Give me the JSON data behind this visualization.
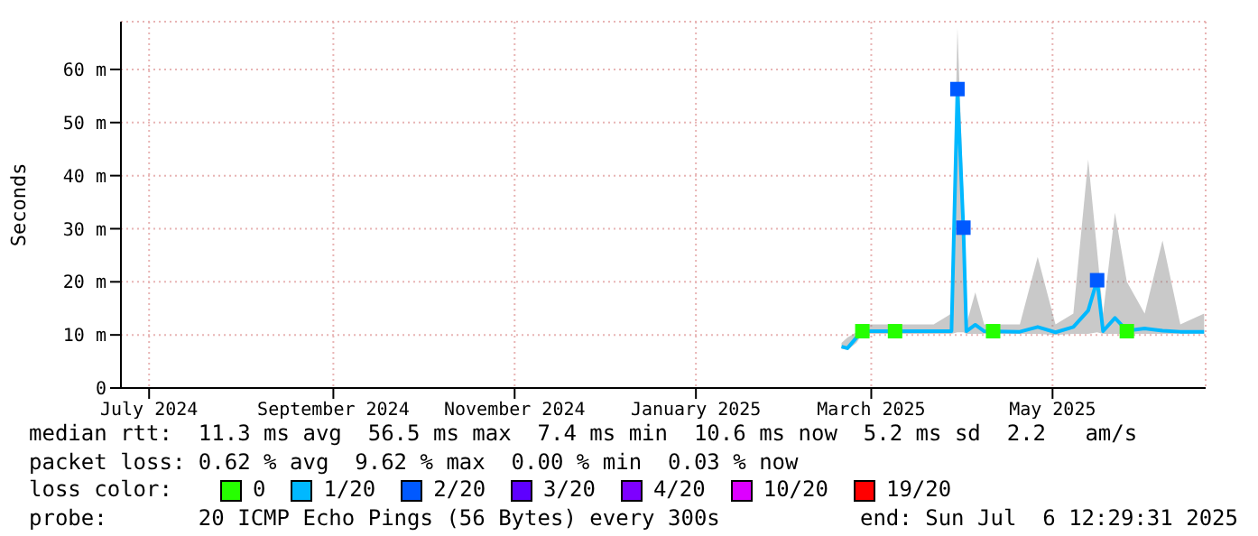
{
  "chart_data": {
    "type": "line",
    "ylabel": "Seconds",
    "xlim": [
      "2024-07-06T12:29",
      "2025-07-06T12:29"
    ],
    "xticks": [
      {
        "value": "2024-07-16",
        "label": "July 2024"
      },
      {
        "value": "2024-09-16",
        "label": "September 2024"
      },
      {
        "value": "2024-11-16",
        "label": "November 2024"
      },
      {
        "value": "2025-01-16",
        "label": "January 2025"
      },
      {
        "value": "2025-03-16",
        "label": "March 2025"
      },
      {
        "value": "2025-05-16",
        "label": "May 2025"
      }
    ],
    "ylim": [
      0,
      69
    ],
    "yticks": [
      0,
      {
        "value": 10,
        "label": "10 m"
      },
      {
        "value": 20,
        "label": "20 m"
      },
      {
        "value": 30,
        "label": "30 m"
      },
      {
        "value": 40,
        "label": "40 m"
      },
      {
        "value": 50,
        "label": "50 m"
      },
      {
        "value": 60,
        "label": "60 m"
      }
    ],
    "grid": true,
    "legend": "bottom",
    "legend_title": "loss color:",
    "series": [
      {
        "name": "0",
        "color": "#26ff00",
        "type": "scatter",
        "x": [
          "2025-03-13",
          "2025-03-24",
          "2025-04-26",
          "2025-06-10"
        ],
        "values": [
          10.7,
          10.7,
          10.7,
          10.7
        ]
      },
      {
        "name": "1/20",
        "color": "#00b8ff",
        "x": [
          "2025-03-06",
          "2025-03-08",
          "2025-03-11",
          "2025-03-13",
          "2025-03-25",
          "2025-04-06",
          "2025-04-12",
          "2025-04-14",
          "2025-04-16",
          "2025-04-17",
          "2025-04-20",
          "2025-04-23",
          "2025-05-05",
          "2025-05-11",
          "2025-05-17",
          "2025-05-23",
          "2025-05-28",
          "2025-05-31",
          "2025-06-02",
          "2025-06-06",
          "2025-06-10",
          "2025-06-16",
          "2025-06-22",
          "2025-06-28",
          "2025-07-06"
        ],
        "values": [
          7.8,
          7.5,
          9.5,
          10.7,
          10.7,
          10.7,
          10.7,
          56.3,
          30.2,
          10.7,
          11.9,
          10.7,
          10.6,
          11.5,
          10.5,
          11.5,
          14.6,
          20.3,
          10.7,
          13.2,
          10.8,
          11.2,
          10.8,
          10.6,
          10.6
        ],
        "lower": [
          7.4,
          7.2,
          8.5,
          10.2,
          10.2,
          10.2,
          10.2,
          10.5,
          10.5,
          10.2,
          10.2,
          10.2,
          10.2,
          10.2,
          10.0,
          10.2,
          10.2,
          10.5,
          10.2,
          10.2,
          10.2,
          10.2,
          10.2,
          10.2,
          10.2
        ],
        "upper": [
          8.5,
          9.5,
          10.5,
          12,
          12,
          12,
          14,
          67.8,
          36.6,
          12,
          18,
          12,
          12,
          24.7,
          12,
          14,
          43,
          25.8,
          14,
          33,
          20,
          14,
          27.8,
          12,
          14
        ]
      },
      {
        "name": "2/20",
        "color": "#0059ff",
        "type": "scatter",
        "x": [
          "2025-04-14",
          "2025-04-16",
          "2025-05-31"
        ],
        "values": [
          56.3,
          30.2,
          20.3
        ]
      },
      {
        "name": "3/20",
        "color": "#5e00ff",
        "type": "scatter"
      },
      {
        "name": "4/20",
        "color": "#7e00ff",
        "type": "scatter"
      },
      {
        "name": "10/20",
        "color": "#dd00ff",
        "type": "scatter"
      },
      {
        "name": "19/20",
        "color": "#ff0000",
        "type": "scatter"
      }
    ],
    "annotations": [
      "median rtt:  11.3 ms avg  56.5 ms max  7.4 ms min  10.6 ms now  5.2 ms sd  2.2   am/s",
      "packet loss: 0.62 % avg  9.62 % max  0.00 % min  0.03 % now",
      "probe:       20 ICMP Echo Pings (56 Bytes) every 300s",
      "end: Sun Jul  6 12:29:31 2025"
    ]
  }
}
